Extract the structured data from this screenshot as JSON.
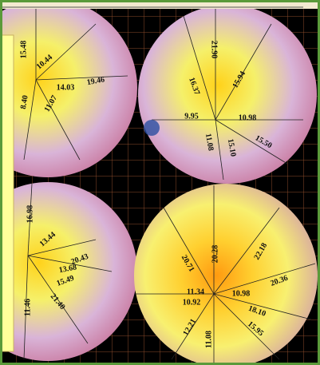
{
  "panels": [
    {
      "labels": [
        "15.48",
        "10.44",
        "14.03",
        "19.46",
        "8.40",
        "11.07"
      ]
    },
    {
      "labels": [
        "21.90",
        "16.37",
        "15.94",
        "9.95",
        "10.98",
        "11.08",
        "15.10",
        "15.50"
      ]
    },
    {
      "labels": [
        "16.98",
        "13.44",
        "20.43",
        "13.68",
        "15.49",
        "11.46",
        "21.40"
      ]
    },
    {
      "labels": [
        "20.28",
        "22.18",
        "20.71",
        "20.36",
        "11.34",
        "10.92",
        "10.98",
        "18.10",
        "12.21",
        "15.95",
        "11.08"
      ]
    }
  ]
}
